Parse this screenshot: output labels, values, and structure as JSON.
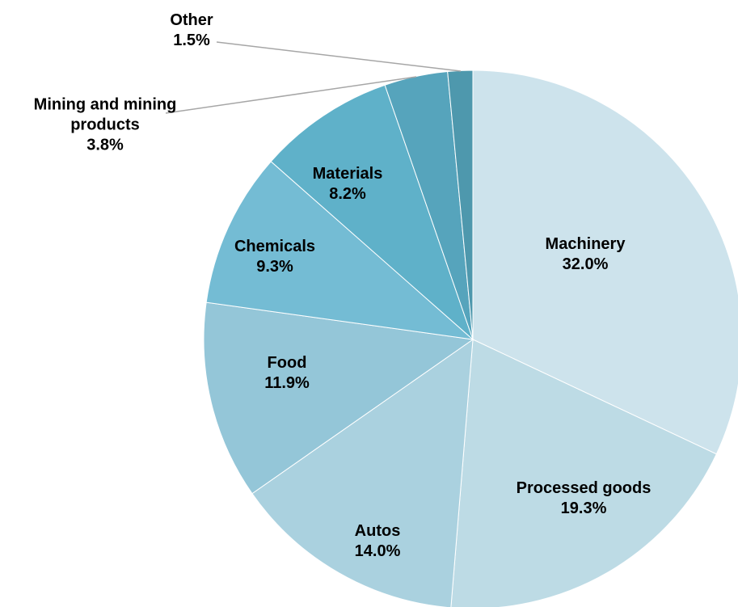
{
  "chart_data": {
    "type": "pie",
    "categories": [
      "Machinery",
      "Processed goods",
      "Autos",
      "Food",
      "Chemicals",
      "Materials",
      "Mining and mining products",
      "Other"
    ],
    "values": [
      32.0,
      19.3,
      14.0,
      11.9,
      9.3,
      8.2,
      3.8,
      1.5
    ],
    "value_labels": [
      "32.0%",
      "19.3%",
      "14.0%",
      "11.9%",
      "9.3%",
      "8.2%",
      "3.8%",
      "1.5%"
    ],
    "colors": [
      "#cde3ec",
      "#bddbe5",
      "#aad1df",
      "#94c6d8",
      "#74bcd4",
      "#5fb1c9",
      "#56a4bc",
      "#4e98ad"
    ]
  }
}
